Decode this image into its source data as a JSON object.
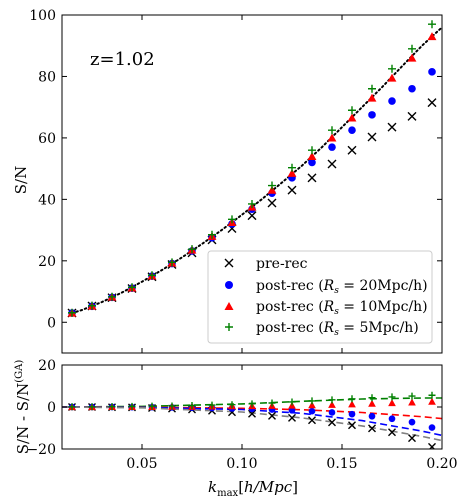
{
  "chart_data": [
    {
      "type": "scatter",
      "panel": "top",
      "annotation": "z=1.02",
      "xlabel": "",
      "ylabel": "S/N",
      "xlim": [
        0.01,
        0.2
      ],
      "ylim": [
        -10,
        100
      ],
      "xticks": [
        0.05,
        0.1,
        0.15,
        0.2
      ],
      "yticks": [
        0,
        20,
        40,
        60,
        80,
        100
      ],
      "ytick_labels": [
        "0",
        "20",
        "40",
        "60",
        "80",
        "100"
      ],
      "legend_position": "lower-right",
      "x": [
        0.015,
        0.025,
        0.035,
        0.045,
        0.055,
        0.065,
        0.075,
        0.085,
        0.095,
        0.105,
        0.115,
        0.125,
        0.135,
        0.145,
        0.155,
        0.165,
        0.175,
        0.185,
        0.195
      ],
      "series": [
        {
          "name": "pre-rec",
          "marker": "x",
          "color": "#000000",
          "values": [
            3.0,
            5.3,
            8.0,
            11.0,
            14.8,
            18.8,
            22.6,
            26.8,
            30.5,
            34.7,
            38.8,
            43.0,
            47.0,
            51.5,
            56.0,
            60.3,
            63.5,
            67.0,
            71.5
          ]
        },
        {
          "name": "post-rec (R_s = 20Mpc/h)",
          "marker": "circle",
          "color": "#0000ff",
          "values": [
            3.0,
            5.2,
            8.1,
            11.1,
            15.0,
            19.1,
            23.2,
            27.5,
            32.0,
            36.8,
            42.0,
            47.0,
            52.0,
            57.0,
            62.5,
            67.5,
            72.0,
            76.0,
            81.5
          ]
        },
        {
          "name": "post-rec (R_s = 10Mpc/h)",
          "marker": "triangle",
          "color": "#ff0000",
          "values": [
            3.0,
            5.3,
            8.2,
            11.2,
            15.1,
            19.3,
            23.5,
            28.0,
            32.5,
            37.5,
            43.0,
            48.5,
            54.0,
            60.0,
            66.5,
            73.0,
            79.5,
            86.0,
            93.0
          ]
        },
        {
          "name": "post-rec (R_s = 5Mpc/h)",
          "marker": "plus",
          "color": "#008000",
          "values": [
            3.1,
            5.4,
            8.3,
            11.4,
            15.3,
            19.5,
            23.8,
            28.5,
            33.5,
            38.5,
            44.5,
            50.3,
            56.0,
            62.5,
            69.0,
            76.0,
            82.5,
            89.0,
            97.0
          ]
        }
      ],
      "reference_curve": {
        "style": "dotted",
        "color": "#000000",
        "x": [
          0.015,
          0.02,
          0.03,
          0.04,
          0.05,
          0.06,
          0.07,
          0.08,
          0.09,
          0.1,
          0.11,
          0.12,
          0.13,
          0.14,
          0.15,
          0.16,
          0.17,
          0.18,
          0.19,
          0.2
        ],
        "values": [
          3.0,
          4.0,
          6.6,
          9.7,
          13.2,
          17.0,
          21.1,
          25.5,
          30.1,
          35.0,
          40.1,
          45.5,
          51.0,
          57.0,
          63.5,
          70.0,
          76.5,
          83.3,
          90.0,
          96.0
        ]
      }
    },
    {
      "type": "scatter",
      "panel": "bottom",
      "xlabel": "k_max[h/Mpc]",
      "ylabel": "S/N - S/N^(GA)",
      "xlim": [
        0.01,
        0.2
      ],
      "ylim": [
        -20,
        20
      ],
      "xticks": [
        0.05,
        0.1,
        0.15,
        0.2
      ],
      "xtick_labels": [
        "0.05",
        "0.10",
        "0.15",
        "0.20"
      ],
      "yticks": [
        -20,
        0,
        20
      ],
      "ytick_labels": [
        "−20",
        "0",
        "20"
      ],
      "x": [
        0.015,
        0.025,
        0.035,
        0.045,
        0.055,
        0.065,
        0.075,
        0.085,
        0.095,
        0.105,
        0.115,
        0.125,
        0.135,
        0.145,
        0.155,
        0.165,
        0.175,
        0.185,
        0.195
      ],
      "series": [
        {
          "name": "pre-rec",
          "marker": "x",
          "color": "#000000",
          "values": [
            0.0,
            0.0,
            -0.1,
            -0.2,
            -0.5,
            -0.8,
            -1.2,
            -1.8,
            -2.5,
            -3.2,
            -4.2,
            -5.2,
            -6.3,
            -7.3,
            -8.7,
            -10.2,
            -12.0,
            -14.8,
            -19.0
          ]
        },
        {
          "name": "post-rec (R_s = 20Mpc/h)",
          "marker": "circle",
          "color": "#0000ff",
          "values": [
            0.0,
            0.0,
            0.0,
            -0.1,
            -0.1,
            -0.2,
            -0.3,
            -0.5,
            -0.7,
            -0.9,
            -1.2,
            -1.6,
            -2.0,
            -2.6,
            -3.4,
            -4.4,
            -5.6,
            -7.2,
            -9.8
          ]
        },
        {
          "name": "post-rec (R_s = 10Mpc/h)",
          "marker": "triangle",
          "color": "#ff0000",
          "values": [
            0.0,
            0.0,
            0.1,
            0.1,
            0.1,
            0.2,
            0.2,
            0.3,
            0.4,
            0.5,
            0.6,
            0.7,
            0.9,
            1.1,
            1.3,
            1.6,
            1.9,
            2.2,
            2.6
          ]
        },
        {
          "name": "post-rec (R_s = 5Mpc/h)",
          "marker": "plus",
          "color": "#008000",
          "values": [
            0.1,
            0.1,
            0.2,
            0.3,
            0.4,
            0.5,
            0.7,
            0.9,
            1.1,
            1.5,
            1.9,
            2.4,
            2.9,
            3.4,
            3.9,
            4.4,
            4.8,
            5.2,
            5.6
          ]
        }
      ],
      "curves": [
        {
          "color": "#008000",
          "style": "dashed",
          "x": [
            0.01,
            0.05,
            0.1,
            0.13,
            0.16,
            0.19,
            0.2
          ],
          "values": [
            0.0,
            0.3,
            1.5,
            2.7,
            3.8,
            4.3,
            4.3
          ]
        },
        {
          "color": "#ff0000",
          "style": "dashed",
          "x": [
            0.01,
            0.05,
            0.1,
            0.13,
            0.16,
            0.19,
            0.2
          ],
          "values": [
            0.0,
            -0.1,
            -0.6,
            -1.3,
            -2.6,
            -4.6,
            -5.5
          ]
        },
        {
          "color": "#0000ff",
          "style": "dashed",
          "x": [
            0.01,
            0.05,
            0.1,
            0.13,
            0.16,
            0.19,
            0.2
          ],
          "values": [
            0.0,
            -0.2,
            -1.2,
            -3.0,
            -6.5,
            -11.5,
            -13.5
          ]
        },
        {
          "color": "#808080",
          "style": "dashed",
          "x": [
            0.01,
            0.05,
            0.1,
            0.13,
            0.16,
            0.19,
            0.2
          ],
          "values": [
            0.0,
            -0.4,
            -2.4,
            -5.2,
            -9.0,
            -14.0,
            -16.0
          ]
        }
      ]
    }
  ]
}
